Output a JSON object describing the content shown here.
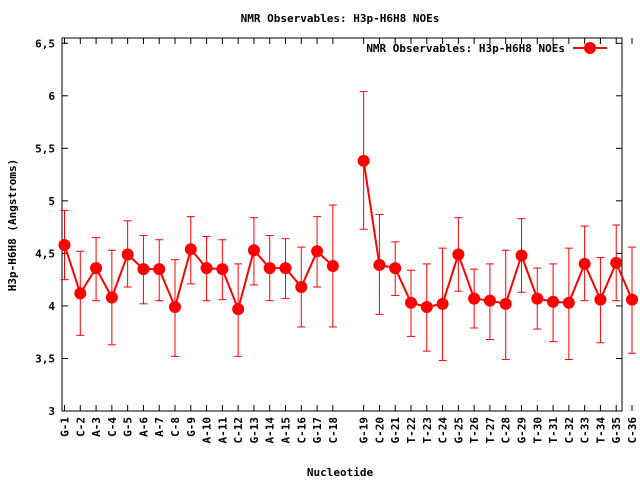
{
  "chart_data": {
    "type": "line",
    "title": "NMR Observables: H3p-H6H8 NOEs",
    "xlabel": "Nucleotide",
    "ylabel": "H3p-H6H8 (Angstroms)",
    "ylim": [
      3,
      6.55
    ],
    "yticks": [
      "3",
      "3.5",
      "4",
      "4.5",
      "5",
      "5.5",
      "6",
      "6.5"
    ],
    "grid": false,
    "legend": "top-right",
    "categories": [
      "G-1",
      "C-2",
      "A-3",
      "C-4",
      "G-5",
      "A-6",
      "A-7",
      "C-8",
      "G-9",
      "A-10",
      "A-11",
      "C-12",
      "G-13",
      "A-14",
      "A-15",
      "C-16",
      "G-17",
      "C-18",
      "G-19",
      "C-20",
      "G-21",
      "T-22",
      "T-23",
      "C-24",
      "G-25",
      "T-26",
      "T-27",
      "C-28",
      "G-29",
      "T-30",
      "T-31",
      "C-32",
      "C-33",
      "T-34",
      "G-35",
      "C-36"
    ],
    "series": [
      {
        "name": "NMR Observables: H3p-H6H8 NOEs",
        "color": "#ff0000",
        "segments": [
          [
            0,
            17
          ],
          [
            18,
            35
          ]
        ],
        "values": [
          4.58,
          4.12,
          4.36,
          4.08,
          4.49,
          4.35,
          4.35,
          3.99,
          4.54,
          4.36,
          4.35,
          3.97,
          4.53,
          4.36,
          4.36,
          4.18,
          4.52,
          4.38,
          5.38,
          4.39,
          4.36,
          4.03,
          3.99,
          4.02,
          4.49,
          4.07,
          4.05,
          4.02,
          4.48,
          4.07,
          4.04,
          4.03,
          4.4,
          4.06,
          4.41,
          4.06
        ],
        "err_low": [
          4.25,
          3.72,
          4.05,
          3.63,
          4.18,
          4.02,
          4.05,
          3.52,
          4.21,
          4.05,
          4.06,
          3.52,
          4.2,
          4.05,
          4.07,
          3.8,
          4.18,
          3.8,
          4.73,
          3.92,
          4.1,
          3.71,
          3.57,
          3.48,
          4.14,
          3.79,
          3.68,
          3.49,
          4.13,
          3.78,
          3.66,
          3.49,
          4.05,
          3.65,
          4.05,
          3.55
        ],
        "err_high": [
          4.91,
          4.52,
          4.65,
          4.53,
          4.81,
          4.67,
          4.63,
          4.44,
          4.85,
          4.66,
          4.63,
          4.4,
          4.84,
          4.67,
          4.64,
          4.56,
          4.85,
          4.96,
          6.04,
          4.87,
          4.61,
          4.34,
          4.4,
          4.55,
          4.84,
          4.35,
          4.4,
          4.53,
          4.83,
          4.36,
          4.4,
          4.55,
          4.76,
          4.46,
          4.77,
          4.56
        ]
      }
    ]
  }
}
